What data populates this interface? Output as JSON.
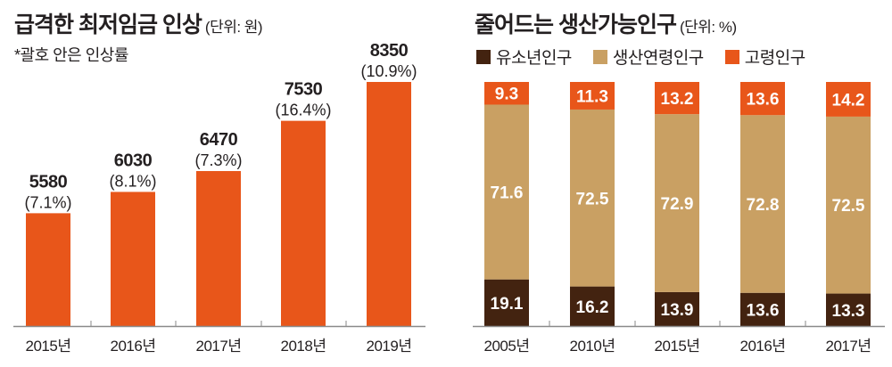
{
  "colors": {
    "orange": "#e8561a",
    "tan": "#c9a063",
    "dark_brown": "#432310",
    "axis": "#8a8a8a",
    "text": "#231f20",
    "white": "#ffffff"
  },
  "chart_data": [
    {
      "type": "bar",
      "title": "급격한 최저임금 인상",
      "unit_label": "(단위: 원)",
      "note": "*괄호 안은 인상률",
      "xlabel": "",
      "ylabel": "",
      "categories": [
        "2015년",
        "2016년",
        "2017년",
        "2018년",
        "2019년"
      ],
      "values": [
        5580,
        6030,
        6470,
        7530,
        8350
      ],
      "value_labels": [
        "5580",
        "6030",
        "6470",
        "7530",
        "8350"
      ],
      "increase_rates": [
        "(7.1%)",
        "(8.1%)",
        "(7.3%)",
        "(16.4%)",
        "(10.9%)"
      ],
      "ylim": [
        3200,
        8700
      ],
      "grid": false,
      "bar_color": "#e8561a"
    },
    {
      "type": "bar",
      "stacked": true,
      "title": "줄어드는 생산가능인구",
      "unit_label": "(단위: %)",
      "xlabel": "",
      "ylabel": "",
      "categories": [
        "2005년",
        "2010년",
        "2015년",
        "2016년",
        "2017년"
      ],
      "legend_position": "top-left",
      "series": [
        {
          "name": "유소년인구",
          "color": "#432310",
          "values": [
            19.1,
            16.2,
            13.9,
            13.6,
            13.3
          ]
        },
        {
          "name": "생산연령인구",
          "color": "#c9a063",
          "values": [
            71.6,
            72.5,
            72.9,
            72.8,
            72.5
          ]
        },
        {
          "name": "고령인구",
          "color": "#e8561a",
          "values": [
            9.3,
            11.3,
            13.2,
            13.6,
            14.2
          ]
        }
      ],
      "ylim": [
        0,
        100
      ],
      "grid": false
    }
  ]
}
